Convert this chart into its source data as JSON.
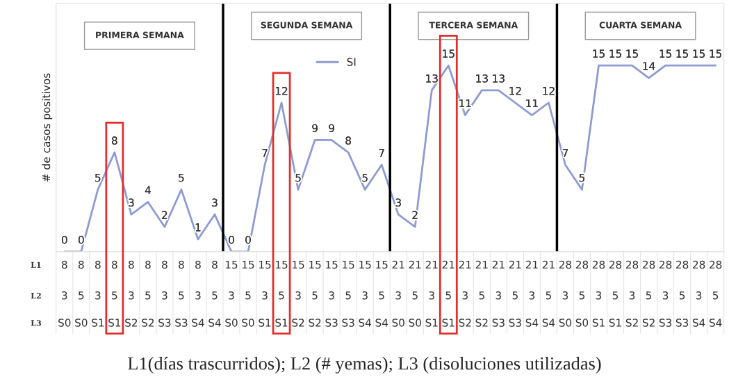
{
  "chart_data": {
    "type": "line",
    "ylabel": "# de casos positivos",
    "categories": [
      "8\n3\nS0",
      "8\n5\nS0",
      "8\n3\nS1",
      "8\n5\nS1",
      "8\n3\nS2",
      "8\n5\nS2",
      "8\n3\nS3",
      "8\n5\nS3",
      "8\n3\nS4",
      "8\n5\nS4",
      "15\n3\nS0",
      "15\n5\nS0",
      "15\n3\nS1",
      "15\n5\nS1",
      "15\n3\nS2",
      "15\n5\nS2",
      "15\n3\nS3",
      "15\n5\nS3",
      "15\n3\nS4",
      "15\n5\nS4",
      "21\n3\nS0",
      "21\n5\nS0",
      "21\n3\nS1",
      "21\n5\nS1",
      "21\n3\nS2",
      "21\n5\nS2",
      "21\n3\nS3",
      "21\n5\nS3",
      "21\n3\nS4",
      "21\n5\nS4",
      "28\n3\nS0",
      "28\n5\nS0",
      "28\n3\nS1",
      "28\n5\nS1",
      "28\n3\nS2",
      "28\n5\nS2",
      "28\n3\nS3",
      "28\n5\nS3",
      "28\n3\nS4",
      "28\n5\nS4"
    ],
    "series": [
      {
        "name": "SI",
        "color": "#8e9bd0",
        "values": [
          0,
          0,
          5,
          8,
          3,
          4,
          2,
          5,
          1,
          3,
          0,
          0,
          7,
          12,
          5,
          9,
          9,
          8,
          5,
          7,
          3,
          2,
          13,
          15,
          11,
          13,
          13,
          12,
          11,
          12,
          7,
          5,
          15,
          15,
          15,
          14,
          15,
          15,
          15,
          15
        ]
      }
    ],
    "ylim": [
      0,
      20
    ],
    "tick_labels": "x",
    "data_labels": true,
    "legend": "top",
    "line_style": "solid",
    "marker": "none",
    "grid": false,
    "annotations": [
      "PRIMERA SEMANA",
      "SEGUNDA SEMANA",
      "TERCERA SEMANA",
      "CUARTA SEMANA",
      "L1",
      "L2",
      "L3",
      "L1(días trascurridos); L2 (# yemas); L3 (disoluciones utilizadas)"
    ]
  }
}
